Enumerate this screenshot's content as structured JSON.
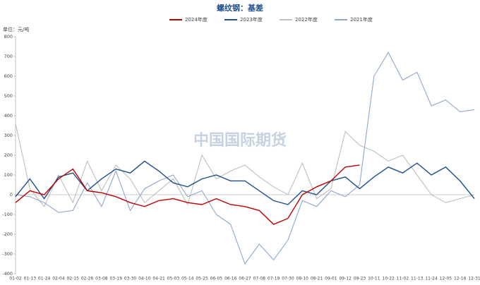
{
  "chart_data": {
    "type": "line",
    "title": "螺纹钢：基差",
    "y_label": "单位：元/吨",
    "watermark": "中国国际期货",
    "categories": [
      "01-02",
      "01-13",
      "01-24",
      "02-04",
      "02-15",
      "02-26",
      "03-08",
      "03-19",
      "03-30",
      "04-10",
      "04-21",
      "05-03",
      "05-14",
      "05-25",
      "06-05",
      "06-16",
      "06-27",
      "07-08",
      "07-19",
      "07-30",
      "08-10",
      "08-21",
      "09-01",
      "09-12",
      "09-23",
      "10-11",
      "10-22",
      "11-02",
      "11-13",
      "11-24",
      "12-05",
      "12-16",
      "12-31"
    ],
    "series": [
      {
        "name": "2024年度",
        "color": "#c00000",
        "values": [
          -40,
          20,
          0,
          80,
          130,
          20,
          10,
          -10,
          -40,
          -60,
          -30,
          -20,
          -40,
          -50,
          -20,
          -50,
          -60,
          -80,
          -150,
          -120,
          0,
          40,
          70,
          140,
          150,
          null,
          null,
          null,
          null,
          null,
          null,
          null,
          null
        ]
      },
      {
        "name": "2023年度",
        "color": "#1f4e8c",
        "values": [
          -10,
          80,
          -20,
          90,
          110,
          20,
          80,
          130,
          110,
          170,
          120,
          60,
          40,
          80,
          100,
          70,
          70,
          20,
          -30,
          -50,
          20,
          0,
          70,
          90,
          30,
          90,
          140,
          110,
          160,
          100,
          140,
          70,
          -20
        ]
      },
      {
        "name": "2022年度",
        "color": "#bfbfbf",
        "values": [
          360,
          30,
          -60,
          100,
          -40,
          170,
          20,
          150,
          80,
          -40,
          20,
          80,
          -50,
          200,
          80,
          120,
          150,
          90,
          40,
          0,
          160,
          -20,
          30,
          320,
          250,
          220,
          170,
          200,
          100,
          0,
          -40,
          -20,
          0
        ]
      },
      {
        "name": "2021年度",
        "color": "#8fa6cf",
        "values": [
          0,
          -10,
          -40,
          -90,
          -80,
          60,
          -60,
          120,
          -80,
          30,
          70,
          100,
          -10,
          20,
          -100,
          -150,
          -350,
          -250,
          -330,
          -230,
          -30,
          -60,
          20,
          -10,
          50,
          600,
          720,
          580,
          620,
          450,
          480,
          420,
          430
        ]
      }
    ],
    "ylim": [
      -400,
      800
    ],
    "yticks": [
      -400,
      -300,
      -200,
      -100,
      0,
      100,
      200,
      300,
      400,
      500,
      600,
      700,
      800
    ],
    "grid": false
  }
}
